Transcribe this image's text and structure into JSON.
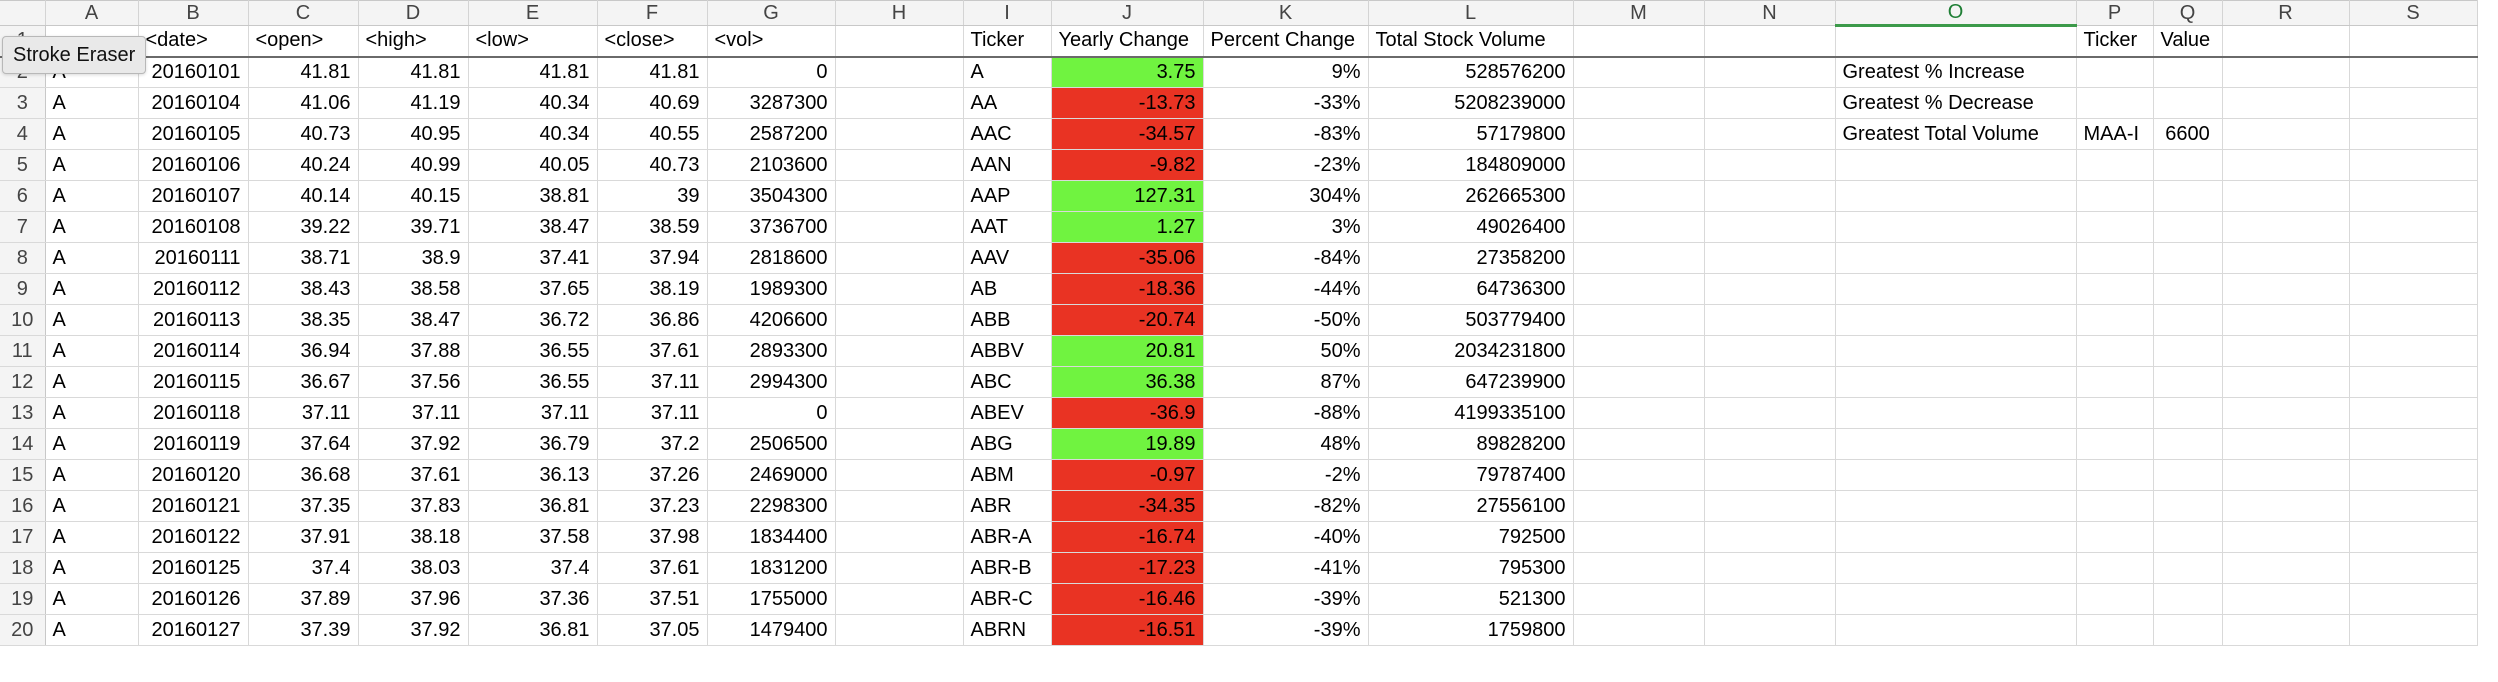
{
  "tooltip": "Stroke Eraser",
  "columns": [
    "A",
    "B",
    "C",
    "D",
    "E",
    "F",
    "G",
    "H",
    "I",
    "J",
    "K",
    "L",
    "M",
    "N",
    "O",
    "P",
    "Q",
    "R",
    "S"
  ],
  "selected_column": "O",
  "header_row": {
    "row": "1",
    "A": "",
    "B": "<date>",
    "C": "<open>",
    "D": "<high>",
    "E": "<low>",
    "F": "<close>",
    "G": "<vol>",
    "H": "",
    "I": "Ticker",
    "J": "Yearly Change",
    "K": "Percent Change",
    "L": "Total Stock Volume",
    "M": "",
    "N": "",
    "O": "",
    "P": "Ticker",
    "Q": "Value",
    "R": "",
    "S": ""
  },
  "rows": [
    {
      "row": "2",
      "A": "A",
      "B": "20160101",
      "C": "41.81",
      "D": "41.81",
      "E": "41.81",
      "F": "41.81",
      "G": "0",
      "I": "A",
      "J": "3.75",
      "K": "9%",
      "L": "528576200",
      "O": "Greatest % Increase",
      "P": "",
      "Q": ""
    },
    {
      "row": "3",
      "A": "A",
      "B": "20160104",
      "C": "41.06",
      "D": "41.19",
      "E": "40.34",
      "F": "40.69",
      "G": "3287300",
      "I": "AA",
      "J": "-13.73",
      "K": "-33%",
      "L": "5208239000",
      "O": "Greatest % Decrease",
      "P": "",
      "Q": ""
    },
    {
      "row": "4",
      "A": "A",
      "B": "20160105",
      "C": "40.73",
      "D": "40.95",
      "E": "40.34",
      "F": "40.55",
      "G": "2587200",
      "I": "AAC",
      "J": "-34.57",
      "K": "-83%",
      "L": "57179800",
      "O": "Greatest Total Volume",
      "P": "MAA-I",
      "Q": "6600"
    },
    {
      "row": "5",
      "A": "A",
      "B": "20160106",
      "C": "40.24",
      "D": "40.99",
      "E": "40.05",
      "F": "40.73",
      "G": "2103600",
      "I": "AAN",
      "J": "-9.82",
      "K": "-23%",
      "L": "184809000",
      "O": "",
      "P": "",
      "Q": ""
    },
    {
      "row": "6",
      "A": "A",
      "B": "20160107",
      "C": "40.14",
      "D": "40.15",
      "E": "38.81",
      "F": "39",
      "G": "3504300",
      "I": "AAP",
      "J": "127.31",
      "K": "304%",
      "L": "262665300",
      "O": "",
      "P": "",
      "Q": ""
    },
    {
      "row": "7",
      "A": "A",
      "B": "20160108",
      "C": "39.22",
      "D": "39.71",
      "E": "38.47",
      "F": "38.59",
      "G": "3736700",
      "I": "AAT",
      "J": "1.27",
      "K": "3%",
      "L": "49026400",
      "O": "",
      "P": "",
      "Q": ""
    },
    {
      "row": "8",
      "A": "A",
      "B": "20160111",
      "C": "38.71",
      "D": "38.9",
      "E": "37.41",
      "F": "37.94",
      "G": "2818600",
      "I": "AAV",
      "J": "-35.06",
      "K": "-84%",
      "L": "27358200",
      "O": "",
      "P": "",
      "Q": ""
    },
    {
      "row": "9",
      "A": "A",
      "B": "20160112",
      "C": "38.43",
      "D": "38.58",
      "E": "37.65",
      "F": "38.19",
      "G": "1989300",
      "I": "AB",
      "J": "-18.36",
      "K": "-44%",
      "L": "64736300",
      "O": "",
      "P": "",
      "Q": ""
    },
    {
      "row": "10",
      "A": "A",
      "B": "20160113",
      "C": "38.35",
      "D": "38.47",
      "E": "36.72",
      "F": "36.86",
      "G": "4206600",
      "I": "ABB",
      "J": "-20.74",
      "K": "-50%",
      "L": "503779400",
      "O": "",
      "P": "",
      "Q": ""
    },
    {
      "row": "11",
      "A": "A",
      "B": "20160114",
      "C": "36.94",
      "D": "37.88",
      "E": "36.55",
      "F": "37.61",
      "G": "2893300",
      "I": "ABBV",
      "J": "20.81",
      "K": "50%",
      "L": "2034231800",
      "O": "",
      "P": "",
      "Q": ""
    },
    {
      "row": "12",
      "A": "A",
      "B": "20160115",
      "C": "36.67",
      "D": "37.56",
      "E": "36.55",
      "F": "37.11",
      "G": "2994300",
      "I": "ABC",
      "J": "36.38",
      "K": "87%",
      "L": "647239900",
      "O": "",
      "P": "",
      "Q": ""
    },
    {
      "row": "13",
      "A": "A",
      "B": "20160118",
      "C": "37.11",
      "D": "37.11",
      "E": "37.11",
      "F": "37.11",
      "G": "0",
      "I": "ABEV",
      "J": "-36.9",
      "K": "-88%",
      "L": "4199335100",
      "O": "",
      "P": "",
      "Q": ""
    },
    {
      "row": "14",
      "A": "A",
      "B": "20160119",
      "C": "37.64",
      "D": "37.92",
      "E": "36.79",
      "F": "37.2",
      "G": "2506500",
      "I": "ABG",
      "J": "19.89",
      "K": "48%",
      "L": "89828200",
      "O": "",
      "P": "",
      "Q": ""
    },
    {
      "row": "15",
      "A": "A",
      "B": "20160120",
      "C": "36.68",
      "D": "37.61",
      "E": "36.13",
      "F": "37.26",
      "G": "2469000",
      "I": "ABM",
      "J": "-0.97",
      "K": "-2%",
      "L": "79787400",
      "O": "",
      "P": "",
      "Q": ""
    },
    {
      "row": "16",
      "A": "A",
      "B": "20160121",
      "C": "37.35",
      "D": "37.83",
      "E": "36.81",
      "F": "37.23",
      "G": "2298300",
      "I": "ABR",
      "J": "-34.35",
      "K": "-82%",
      "L": "27556100",
      "O": "",
      "P": "",
      "Q": ""
    },
    {
      "row": "17",
      "A": "A",
      "B": "20160122",
      "C": "37.91",
      "D": "38.18",
      "E": "37.58",
      "F": "37.98",
      "G": "1834400",
      "I": "ABR-A",
      "J": "-16.74",
      "K": "-40%",
      "L": "792500",
      "O": "",
      "P": "",
      "Q": ""
    },
    {
      "row": "18",
      "A": "A",
      "B": "20160125",
      "C": "37.4",
      "D": "38.03",
      "E": "37.4",
      "F": "37.61",
      "G": "1831200",
      "I": "ABR-B",
      "J": "-17.23",
      "K": "-41%",
      "L": "795300",
      "O": "",
      "P": "",
      "Q": ""
    },
    {
      "row": "19",
      "A": "A",
      "B": "20160126",
      "C": "37.89",
      "D": "37.96",
      "E": "37.36",
      "F": "37.51",
      "G": "1755000",
      "I": "ABR-C",
      "J": "-16.46",
      "K": "-39%",
      "L": "521300",
      "O": "",
      "P": "",
      "Q": ""
    },
    {
      "row": "20",
      "A": "A",
      "B": "20160127",
      "C": "37.39",
      "D": "37.92",
      "E": "36.81",
      "F": "37.05",
      "G": "1479400",
      "I": "ABRN",
      "J": "-16.51",
      "K": "-39%",
      "L": "1759800",
      "O": "",
      "P": "",
      "Q": ""
    }
  ],
  "colors": {
    "positive_fill": "#70f340",
    "negative_fill": "#e93323",
    "selected_header": "#3c9a4a"
  }
}
